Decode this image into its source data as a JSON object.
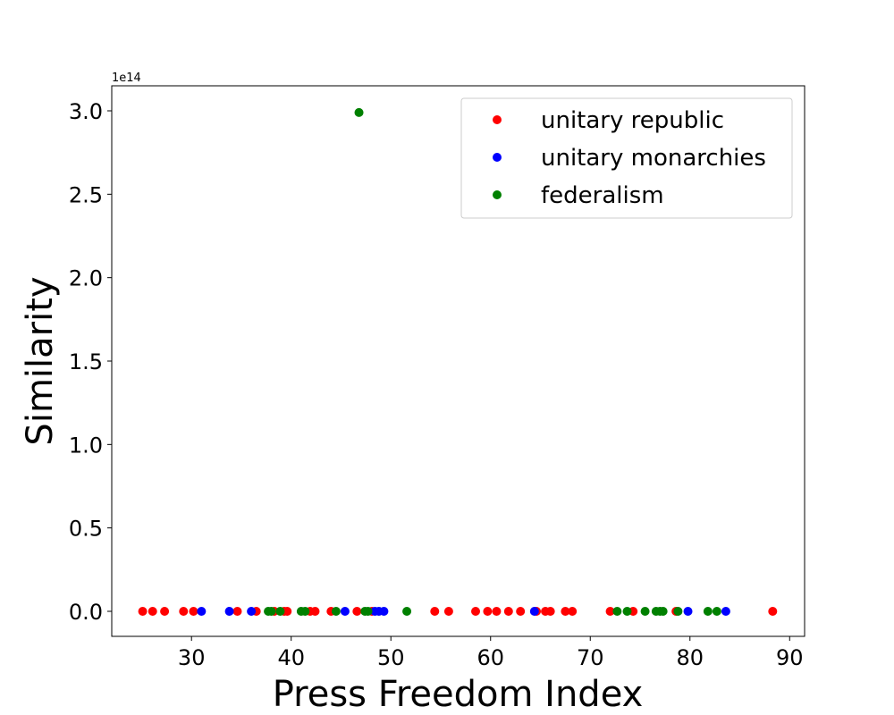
{
  "chart_data": {
    "type": "scatter",
    "xlabel": "Press Freedom Index",
    "ylabel": "Similarity",
    "xlim": [
      22,
      91.5
    ],
    "ylim": [
      -15000000000000.0,
      315000000000000.0
    ],
    "x_ticks": [
      30,
      40,
      50,
      60,
      70,
      80,
      90
    ],
    "x_tick_labels": [
      "30",
      "40",
      "50",
      "60",
      "70",
      "80",
      "90"
    ],
    "y_ticks": [
      0,
      50000000000000.0,
      100000000000000.0,
      150000000000000.0,
      200000000000000.0,
      250000000000000.0,
      300000000000000.0
    ],
    "y_tick_labels": [
      "0.0",
      "0.5",
      "1.0",
      "1.5",
      "2.0",
      "2.5",
      "3.0"
    ],
    "y_offset_label": "1e14",
    "grid": false,
    "legend_position": "top-right",
    "series": [
      {
        "name": "unitary republic",
        "color": "#ff0000",
        "points": [
          [
            25.1,
            0
          ],
          [
            26.1,
            0
          ],
          [
            27.3,
            0
          ],
          [
            29.2,
            0
          ],
          [
            30.2,
            0
          ],
          [
            34.6,
            0
          ],
          [
            36.5,
            0
          ],
          [
            38.3,
            0
          ],
          [
            39.3,
            0
          ],
          [
            39.6,
            0
          ],
          [
            41.9,
            0
          ],
          [
            42.4,
            0
          ],
          [
            44.0,
            0
          ],
          [
            46.6,
            0
          ],
          [
            48.1,
            0
          ],
          [
            54.4,
            0
          ],
          [
            55.8,
            0
          ],
          [
            58.5,
            0
          ],
          [
            59.7,
            0
          ],
          [
            60.6,
            0
          ],
          [
            61.8,
            0
          ],
          [
            63.0,
            0
          ],
          [
            64.6,
            0
          ],
          [
            65.5,
            0
          ],
          [
            66.0,
            0
          ],
          [
            67.5,
            0
          ],
          [
            68.2,
            0
          ],
          [
            72.0,
            0
          ],
          [
            74.3,
            0
          ],
          [
            78.6,
            0
          ],
          [
            88.3,
            0
          ]
        ]
      },
      {
        "name": "unitary monarchies",
        "color": "#0000ff",
        "points": [
          [
            31.0,
            0
          ],
          [
            33.8,
            0
          ],
          [
            36.0,
            0
          ],
          [
            45.4,
            0
          ],
          [
            48.4,
            0
          ],
          [
            48.8,
            0
          ],
          [
            49.3,
            0
          ],
          [
            64.4,
            0
          ],
          [
            79.8,
            0
          ],
          [
            83.6,
            0
          ]
        ]
      },
      {
        "name": "federalism",
        "color": "#008000",
        "points": [
          [
            46.8,
            299000000000000.0
          ],
          [
            37.7,
            0
          ],
          [
            38.0,
            0
          ],
          [
            38.9,
            0
          ],
          [
            41.0,
            0
          ],
          [
            41.4,
            0
          ],
          [
            44.5,
            0
          ],
          [
            47.4,
            0
          ],
          [
            47.7,
            0
          ],
          [
            51.6,
            0
          ],
          [
            72.7,
            0
          ],
          [
            73.7,
            0
          ],
          [
            75.5,
            0
          ],
          [
            76.6,
            0
          ],
          [
            77.0,
            0
          ],
          [
            77.3,
            0
          ],
          [
            78.8,
            0
          ],
          [
            81.8,
            0
          ],
          [
            82.7,
            0
          ]
        ]
      }
    ]
  }
}
